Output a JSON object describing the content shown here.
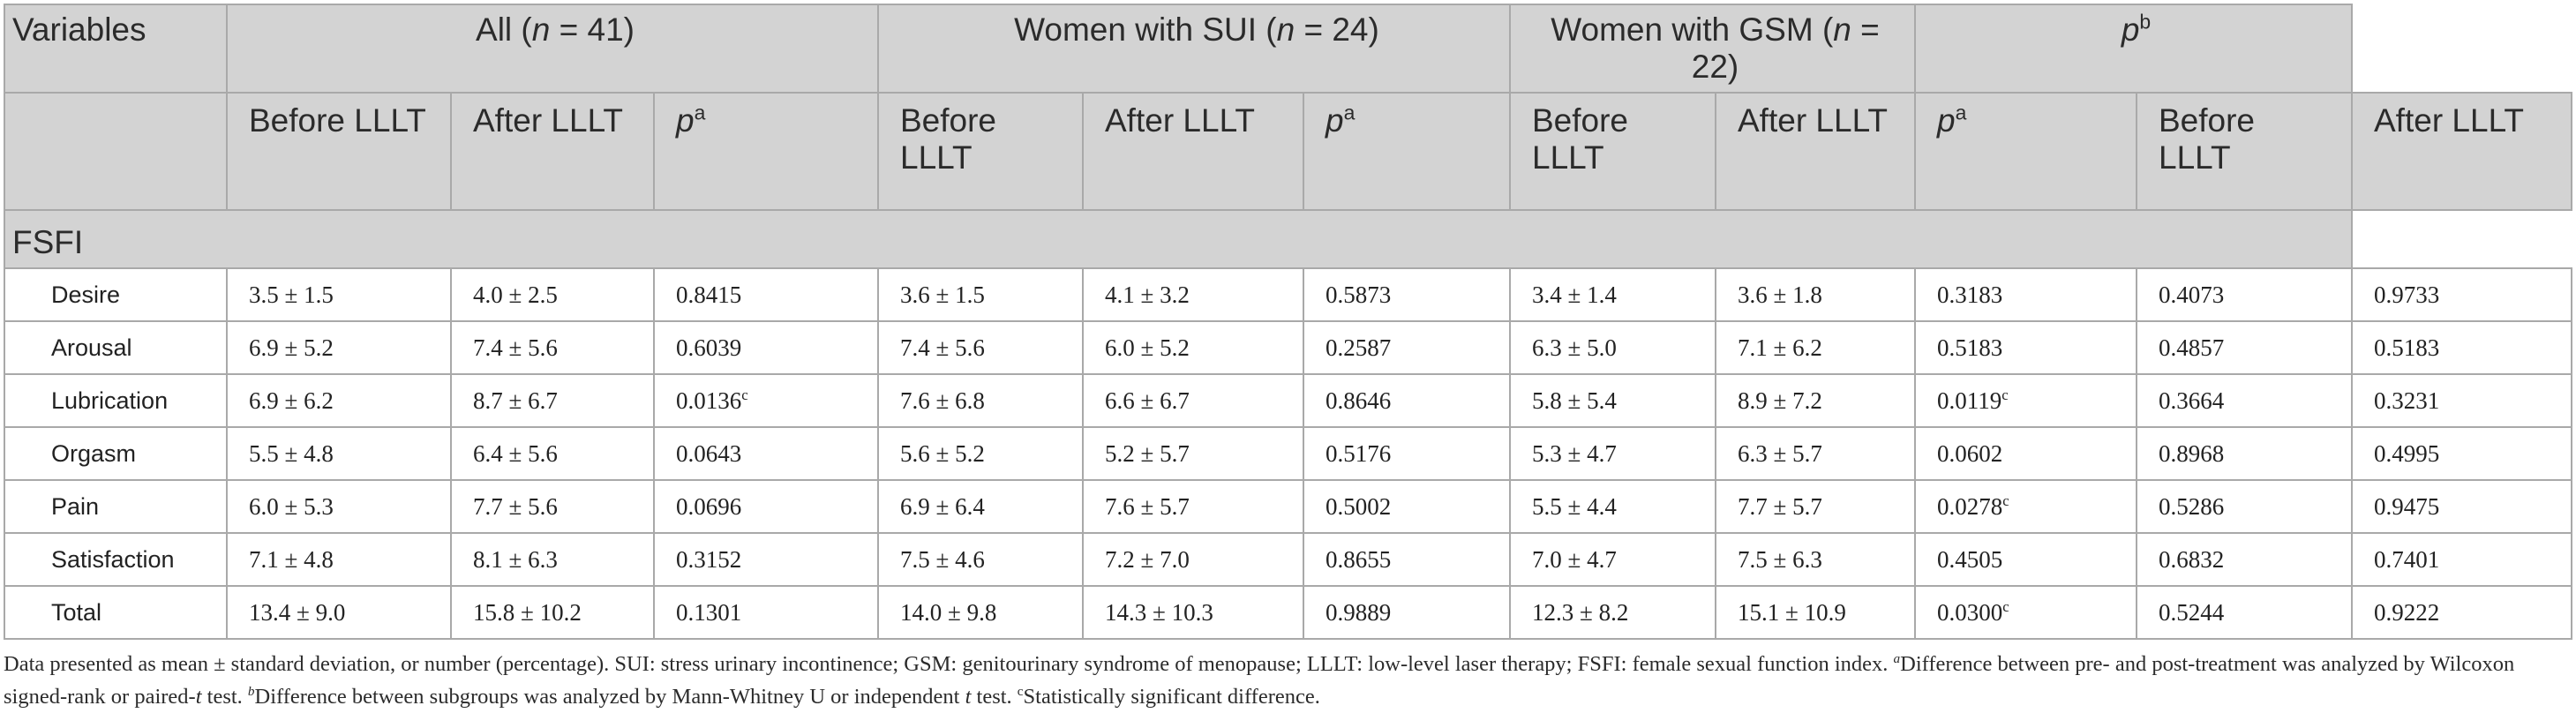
{
  "table": {
    "header_row1": {
      "variables": "Variables",
      "all": {
        "label": "All (",
        "n": "n",
        "value": " = 41)"
      },
      "sui": {
        "label": "Women with SUI (",
        "n": "n",
        "value": " = 24)"
      },
      "gsm": {
        "label": "Women with GSM (",
        "n": "n",
        "value": " = 22)"
      },
      "pb": {
        "p": "p",
        "sup": "b"
      }
    },
    "header_row2": {
      "before": "Before LLLT",
      "after": "After LLLT",
      "p": "p",
      "sup_a": "a"
    },
    "section": "FSFI",
    "rows": [
      {
        "var": "Desire",
        "all_before": "3.5 ± 1.5",
        "all_after": "4.0 ± 2.5",
        "all_p": "0.8415",
        "all_p_sup": "",
        "sui_before": "3.6 ± 1.5",
        "sui_after": "4.1 ± 3.2",
        "sui_p": "0.5873",
        "sui_p_sup": "",
        "gsm_before": "3.4 ± 1.4",
        "gsm_after": "3.6 ± 1.8",
        "gsm_p": "0.3183",
        "gsm_p_sup": "",
        "pb_before": "0.4073",
        "pb_after": "0.9733"
      },
      {
        "var": "Arousal",
        "all_before": "6.9 ± 5.2",
        "all_after": "7.4 ± 5.6",
        "all_p": "0.6039",
        "all_p_sup": "",
        "sui_before": "7.4 ± 5.6",
        "sui_after": "6.0 ± 5.2",
        "sui_p": "0.2587",
        "sui_p_sup": "",
        "gsm_before": "6.3 ± 5.0",
        "gsm_after": "7.1 ± 6.2",
        "gsm_p": "0.5183",
        "gsm_p_sup": "",
        "pb_before": "0.4857",
        "pb_after": "0.5183"
      },
      {
        "var": "Lubrication",
        "all_before": "6.9 ± 6.2",
        "all_after": "8.7 ± 6.7",
        "all_p": "0.0136",
        "all_p_sup": "c",
        "sui_before": "7.6 ± 6.8",
        "sui_after": "6.6 ± 6.7",
        "sui_p": "0.8646",
        "sui_p_sup": "",
        "gsm_before": "5.8 ± 5.4",
        "gsm_after": "8.9 ± 7.2",
        "gsm_p": "0.0119",
        "gsm_p_sup": "c",
        "pb_before": "0.3664",
        "pb_after": "0.3231"
      },
      {
        "var": "Orgasm",
        "all_before": "5.5 ± 4.8",
        "all_after": "6.4 ± 5.6",
        "all_p": "0.0643",
        "all_p_sup": "",
        "sui_before": "5.6 ± 5.2",
        "sui_after": "5.2 ± 5.7",
        "sui_p": "0.5176",
        "sui_p_sup": "",
        "gsm_before": "5.3 ± 4.7",
        "gsm_after": "6.3 ± 5.7",
        "gsm_p": "0.0602",
        "gsm_p_sup": "",
        "pb_before": "0.8968",
        "pb_after": "0.4995"
      },
      {
        "var": "Pain",
        "all_before": "6.0 ± 5.3",
        "all_after": "7.7 ± 5.6",
        "all_p": "0.0696",
        "all_p_sup": "",
        "sui_before": "6.9 ± 6.4",
        "sui_after": "7.6 ± 5.7",
        "sui_p": "0.5002",
        "sui_p_sup": "",
        "gsm_before": "5.5 ± 4.4",
        "gsm_after": "7.7 ± 5.7",
        "gsm_p": "0.0278",
        "gsm_p_sup": "c",
        "pb_before": "0.5286",
        "pb_after": "0.9475"
      },
      {
        "var": "Satisfaction",
        "all_before": "7.1 ± 4.8",
        "all_after": "8.1 ± 6.3",
        "all_p": "0.3152",
        "all_p_sup": "",
        "sui_before": "7.5 ± 4.6",
        "sui_after": "7.2 ± 7.0",
        "sui_p": "0.8655",
        "sui_p_sup": "",
        "gsm_before": "7.0 ± 4.7",
        "gsm_after": "7.5 ± 6.3",
        "gsm_p": "0.4505",
        "gsm_p_sup": "",
        "pb_before": "0.6832",
        "pb_after": "0.7401"
      },
      {
        "var": "Total",
        "all_before": "13.4 ± 9.0",
        "all_after": "15.8 ± 10.2",
        "all_p": "0.1301",
        "all_p_sup": "",
        "sui_before": "14.0 ± 9.8",
        "sui_after": "14.3 ± 10.3",
        "sui_p": "0.9889",
        "sui_p_sup": "",
        "gsm_before": "12.3 ± 8.2",
        "gsm_after": "15.1 ± 10.9",
        "gsm_p": "0.0300",
        "gsm_p_sup": "c",
        "pb_before": "0.5244",
        "pb_after": "0.9222"
      }
    ]
  },
  "footnote": {
    "part1": "Data presented as mean ± standard deviation, or number (percentage). SUI: stress urinary incontinence; GSM: genitourinary syndrome of menopause; LLLT: low-level laser therapy; FSFI: female sexual function index. ",
    "sup_a": "a",
    "part2": "Difference between pre- and post-treatment was analyzed by Wilcoxon signed-rank or paired-",
    "t1": "t",
    "part3": " test. ",
    "sup_b": "b",
    "part4": "Difference between subgroups was analyzed by Mann-Whitney U or independent ",
    "t2": "t",
    "part5": " test. ",
    "sup_c": "c",
    "part6": "Statistically significant difference."
  }
}
